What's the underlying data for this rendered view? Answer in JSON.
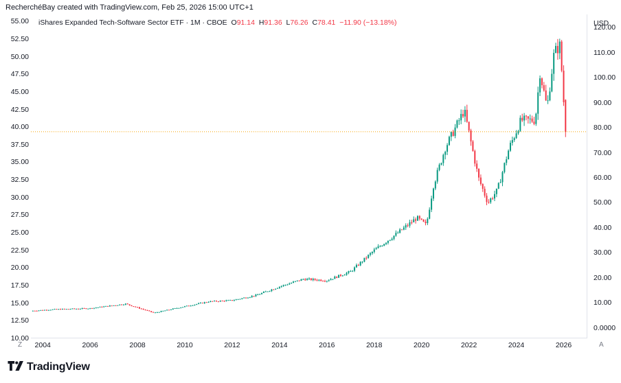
{
  "attribution": "RecherchéBay created with TradingView.com, Feb 25, 2026 15:00 UTC+1",
  "legend": {
    "title": "iShares Expanded Tech-Software Sector ETF · 1M · CBOE",
    "open_label": "O",
    "open_value": "91.14",
    "high_label": "H",
    "high_value": "91.36",
    "low_label": "L",
    "low_value": "76.26",
    "close_label": "C",
    "close_value": "78.41",
    "change": "−11.90 (−13.18%)"
  },
  "colors": {
    "up": "#089981",
    "down": "#f23645",
    "priceline": "#f7a400"
  },
  "buttons": {
    "z": "Z",
    "a": "A"
  },
  "currency": "USD",
  "logo": {
    "text": "TradingView"
  },
  "chart_data": {
    "type": "candlestick",
    "interval": "1M",
    "title": "iShares Expanded Tech-Software Sector ETF",
    "exchange": "CBOE",
    "xlim": [
      2003.5,
      2027.0
    ],
    "left_axis": {
      "range": [
        10.0,
        56.0
      ],
      "ticks": [
        "55.00",
        "52.50",
        "50.00",
        "47.50",
        "45.00",
        "42.50",
        "40.00",
        "37.50",
        "35.00",
        "32.50",
        "30.00",
        "27.50",
        "25.00",
        "22.50",
        "20.00",
        "17.50",
        "15.00",
        "12.50",
        "10.00"
      ]
    },
    "right_axis": {
      "unit": "USD",
      "range": [
        -4.2,
        125.3
      ],
      "ticks": [
        "120.00",
        "110.00",
        "100.00",
        "90.00",
        "80.00",
        "70.00",
        "60.00",
        "50.00",
        "40.00",
        "30.00",
        "20.00",
        "10.00",
        "0.0000"
      ]
    },
    "x_ticks": [
      "2004",
      "2006",
      "2008",
      "2010",
      "2012",
      "2014",
      "2016",
      "2018",
      "2020",
      "2022",
      "2024",
      "2026"
    ],
    "last_price": 78.41,
    "anchors": [
      {
        "t": 2003.5,
        "close": 6.8
      },
      {
        "t": 2004.5,
        "close": 7.4
      },
      {
        "t": 2006.0,
        "close": 7.8
      },
      {
        "t": 2007.5,
        "close": 9.6
      },
      {
        "t": 2008.7,
        "close": 6.0
      },
      {
        "t": 2009.5,
        "close": 7.6
      },
      {
        "t": 2011.0,
        "close": 10.5
      },
      {
        "t": 2012.0,
        "close": 11.0
      },
      {
        "t": 2013.0,
        "close": 13.0
      },
      {
        "t": 2014.0,
        "close": 16.5
      },
      {
        "t": 2015.0,
        "close": 19.5
      },
      {
        "t": 2016.0,
        "close": 19.0
      },
      {
        "t": 2017.0,
        "close": 22.5
      },
      {
        "t": 2018.0,
        "close": 31.0
      },
      {
        "t": 2019.0,
        "close": 38.0
      },
      {
        "t": 2019.8,
        "close": 44.0
      },
      {
        "t": 2020.2,
        "close": 41.0
      },
      {
        "t": 2020.5,
        "close": 57.0
      },
      {
        "t": 2021.0,
        "close": 72.0
      },
      {
        "t": 2021.8,
        "close": 87.0
      },
      {
        "t": 2022.4,
        "close": 60.0
      },
      {
        "t": 2022.8,
        "close": 50.0
      },
      {
        "t": 2023.2,
        "close": 55.0
      },
      {
        "t": 2023.7,
        "close": 72.0
      },
      {
        "t": 2024.2,
        "close": 83.0
      },
      {
        "t": 2024.8,
        "close": 83.0
      },
      {
        "t": 2025.0,
        "close": 102.0
      },
      {
        "t": 2025.3,
        "close": 88.0
      },
      {
        "t": 2025.6,
        "close": 110.0
      },
      {
        "t": 2025.85,
        "close": 113.0
      },
      {
        "t": 2026.0,
        "close": 90.5
      }
    ],
    "last_candle": {
      "t": 2026.08,
      "open": 91.14,
      "high": 91.36,
      "low": 76.26,
      "close": 78.41
    }
  }
}
